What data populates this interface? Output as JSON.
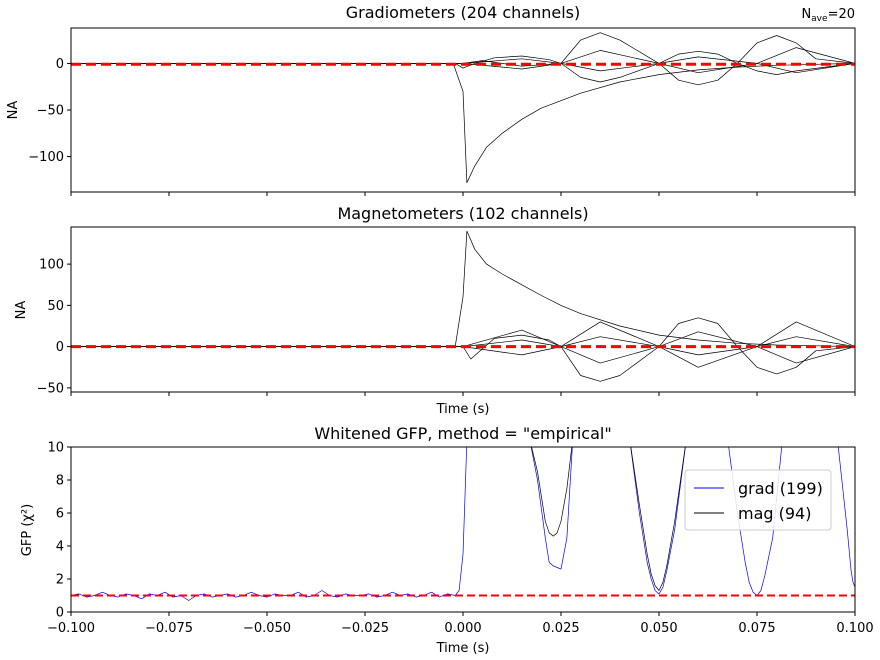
{
  "chart_data": [
    {
      "type": "line",
      "title": "Gradiometers (204 channels)",
      "annotation": {
        "prefix": "N",
        "subscript": "ave",
        "suffix": "=20"
      },
      "ylabel": "NA",
      "xlabel": "",
      "xlim": [
        -0.1,
        0.1
      ],
      "ylim": [
        -138,
        38
      ],
      "yticks": [
        {
          "v": 0,
          "label": "0"
        },
        {
          "v": -50,
          "label": "−50"
        },
        {
          "v": -100,
          "label": "−100"
        }
      ],
      "series": [
        {
          "color": "#000000",
          "style": "solid",
          "width": 0.7,
          "x": [
            -0.1,
            -0.0025,
            0.0,
            0.001,
            0.003,
            0.006,
            0.01,
            0.015,
            0.02,
            0.025,
            0.03,
            0.04,
            0.05,
            0.06,
            0.07,
            0.08,
            0.09,
            0.1
          ],
          "y": [
            0,
            0,
            -30,
            -128,
            -110,
            -90,
            -75,
            -60,
            -48,
            -40,
            -32,
            -20,
            -12,
            -7,
            -4,
            -2,
            -1,
            0
          ]
        },
        {
          "color": "#000000",
          "style": "solid",
          "width": 0.7,
          "x": [
            -0.1,
            -0.002,
            0.0,
            0.003,
            0.008,
            0.015,
            0.022,
            0.025,
            0.03,
            0.035,
            0.04,
            0.05,
            0.055,
            0.06,
            0.065,
            0.07,
            0.075,
            0.08,
            0.085,
            0.09,
            0.1
          ],
          "y": [
            0,
            0,
            -5,
            0,
            6,
            8,
            4,
            0,
            25,
            33,
            25,
            0,
            10,
            13,
            10,
            0,
            22,
            30,
            22,
            5,
            0
          ]
        },
        {
          "color": "#000000",
          "style": "solid",
          "width": 0.7,
          "x": [
            -0.1,
            0.0,
            0.005,
            0.015,
            0.025,
            0.03,
            0.035,
            0.04,
            0.05,
            0.055,
            0.06,
            0.065,
            0.07,
            0.075,
            0.08,
            0.085,
            0.1
          ],
          "y": [
            0,
            0,
            3,
            -3,
            0,
            -15,
            -20,
            -15,
            0,
            -18,
            -23,
            -18,
            0,
            -8,
            -12,
            -8,
            0
          ]
        },
        {
          "color": "#000000",
          "style": "solid",
          "width": 0.7,
          "x": [
            -0.1,
            0.0,
            0.015,
            0.025,
            0.035,
            0.05,
            0.06,
            0.075,
            0.085,
            0.1
          ],
          "y": [
            0,
            0,
            5,
            0,
            14,
            0,
            -10,
            0,
            17,
            0
          ]
        },
        {
          "color": "#000000",
          "style": "solid",
          "width": 0.7,
          "x": [
            -0.1,
            0.0,
            0.015,
            0.025,
            0.035,
            0.05,
            0.06,
            0.075,
            0.085,
            0.1
          ],
          "y": [
            0,
            0,
            -6,
            0,
            -8,
            0,
            7,
            0,
            -10,
            0
          ]
        },
        {
          "color": "#ff0000",
          "style": "dashed",
          "width": 3,
          "x": [
            -0.1,
            0.1
          ],
          "y": [
            -1,
            -1
          ]
        }
      ]
    },
    {
      "type": "line",
      "title": "Magnetometers (102 channels)",
      "ylabel": "NA",
      "xlabel": "Time (s)",
      "xlim": [
        -0.1,
        0.1
      ],
      "ylim": [
        -55,
        145
      ],
      "yticks": [
        {
          "v": 100,
          "label": "100"
        },
        {
          "v": 50,
          "label": "50"
        },
        {
          "v": 0,
          "label": "0"
        },
        {
          "v": -50,
          "label": "−50"
        }
      ],
      "series": [
        {
          "color": "#000000",
          "style": "solid",
          "width": 0.7,
          "x": [
            -0.1,
            -0.002,
            0.0,
            0.001,
            0.003,
            0.006,
            0.01,
            0.015,
            0.02,
            0.025,
            0.03,
            0.04,
            0.05,
            0.06,
            0.07,
            0.08,
            0.09,
            0.1
          ],
          "y": [
            0,
            0,
            60,
            140,
            118,
            100,
            88,
            75,
            62,
            50,
            40,
            25,
            14,
            8,
            4,
            2,
            1,
            0
          ]
        },
        {
          "color": "#000000",
          "style": "solid",
          "width": 0.7,
          "x": [
            -0.1,
            0.0,
            0.002,
            0.008,
            0.015,
            0.022,
            0.025,
            0.03,
            0.035,
            0.04,
            0.05,
            0.055,
            0.06,
            0.065,
            0.07,
            0.075,
            0.08,
            0.085,
            0.09,
            0.1
          ],
          "y": [
            0,
            0,
            -15,
            10,
            14,
            8,
            0,
            -35,
            -42,
            -35,
            0,
            28,
            35,
            28,
            0,
            -25,
            -33,
            -25,
            -5,
            0
          ]
        },
        {
          "color": "#000000",
          "style": "solid",
          "width": 0.7,
          "x": [
            -0.1,
            0.0,
            0.015,
            0.025,
            0.035,
            0.05,
            0.06,
            0.075,
            0.085,
            0.1
          ],
          "y": [
            0,
            0,
            20,
            0,
            30,
            0,
            -25,
            0,
            30,
            0
          ]
        },
        {
          "color": "#000000",
          "style": "solid",
          "width": 0.7,
          "x": [
            -0.1,
            0.0,
            0.015,
            0.025,
            0.035,
            0.05,
            0.06,
            0.075,
            0.085,
            0.1
          ],
          "y": [
            0,
            0,
            -10,
            0,
            -20,
            0,
            18,
            0,
            -20,
            0
          ]
        },
        {
          "color": "#000000",
          "style": "solid",
          "width": 0.7,
          "x": [
            -0.1,
            0.0,
            0.015,
            0.025,
            0.035,
            0.05,
            0.06,
            0.075,
            0.085,
            0.1
          ],
          "y": [
            0,
            0,
            8,
            0,
            12,
            0,
            -10,
            0,
            12,
            0
          ]
        },
        {
          "color": "#ff0000",
          "style": "dashed",
          "width": 3,
          "x": [
            -0.1,
            0.1
          ],
          "y": [
            0,
            0
          ]
        }
      ]
    },
    {
      "type": "line",
      "title": "Whitened GFP, method = \"empirical\"",
      "ylabel": "GFP (χ²)",
      "xlabel": "Time (s)",
      "xlim": [
        -0.1,
        0.1
      ],
      "ylim": [
        0,
        10
      ],
      "xticks": [
        {
          "v": -0.1,
          "label": "−0.100"
        },
        {
          "v": -0.075,
          "label": "−0.075"
        },
        {
          "v": -0.05,
          "label": "−0.050"
        },
        {
          "v": -0.025,
          "label": "−0.025"
        },
        {
          "v": 0.0,
          "label": "0.000"
        },
        {
          "v": 0.025,
          "label": "0.025"
        },
        {
          "v": 0.05,
          "label": "0.050"
        },
        {
          "v": 0.075,
          "label": "0.075"
        },
        {
          "v": 0.1,
          "label": "0.100"
        }
      ],
      "yticks": [
        {
          "v": 0,
          "label": "0"
        },
        {
          "v": 2,
          "label": "2"
        },
        {
          "v": 4,
          "label": "4"
        },
        {
          "v": 6,
          "label": "6"
        },
        {
          "v": 8,
          "label": "8"
        },
        {
          "v": 10,
          "label": "10"
        }
      ],
      "legend": {
        "position": "right",
        "entries": [
          {
            "label": "grad (199)",
            "color": "#0000ff"
          },
          {
            "label": "mag (94)",
            "color": "#000000"
          }
        ]
      },
      "series": [
        {
          "name": "grad (199)",
          "color": "#0000ff",
          "style": "solid",
          "width": 0.7,
          "x": [
            -0.1,
            -0.098,
            -0.096,
            -0.094,
            -0.092,
            -0.09,
            -0.088,
            -0.086,
            -0.084,
            -0.082,
            -0.08,
            -0.078,
            -0.076,
            -0.074,
            -0.072,
            -0.07,
            -0.068,
            -0.066,
            -0.064,
            -0.062,
            -0.06,
            -0.058,
            -0.056,
            -0.054,
            -0.052,
            -0.05,
            -0.048,
            -0.046,
            -0.044,
            -0.042,
            -0.04,
            -0.038,
            -0.036,
            -0.034,
            -0.032,
            -0.03,
            -0.028,
            -0.026,
            -0.024,
            -0.022,
            -0.02,
            -0.018,
            -0.016,
            -0.014,
            -0.012,
            -0.01,
            -0.008,
            -0.006,
            -0.004,
            -0.002,
            -0.001,
            0.0,
            0.0005,
            0.001,
            0.017,
            0.019,
            0.021,
            0.022,
            0.023,
            0.024,
            0.025,
            0.0265,
            0.028,
            0.0425,
            0.045,
            0.047,
            0.048,
            0.049,
            0.05,
            0.051,
            0.052,
            0.054,
            0.057,
            0.0675,
            0.07,
            0.072,
            0.073,
            0.074,
            0.075,
            0.076,
            0.077,
            0.079,
            0.0815,
            0.0955,
            0.098,
            0.099,
            0.0995,
            0.1,
            0.1
          ],
          "y": [
            1.0,
            1.1,
            0.9,
            1.0,
            1.2,
            1.0,
            0.9,
            1.1,
            1.0,
            0.8,
            1.1,
            1.0,
            1.2,
            0.9,
            1.0,
            0.7,
            1.0,
            1.1,
            0.9,
            1.0,
            1.1,
            0.9,
            1.0,
            1.2,
            1.0,
            0.9,
            1.1,
            1.0,
            1.0,
            1.2,
            0.9,
            1.0,
            1.3,
            1.0,
            0.9,
            1.1,
            1.0,
            1.0,
            1.1,
            0.9,
            1.0,
            1.2,
            1.0,
            1.1,
            0.9,
            1.0,
            1.2,
            0.9,
            1.1,
            1.0,
            1.3,
            3.5,
            7.0,
            10.5,
            10.5,
            8.0,
            4.5,
            3.0,
            2.8,
            2.7,
            2.6,
            4.5,
            10.5,
            10.5,
            6.0,
            3.0,
            2.0,
            1.3,
            1.1,
            1.5,
            2.5,
            5.0,
            10.5,
            10.5,
            6.0,
            3.0,
            1.8,
            1.2,
            1.0,
            1.3,
            2.2,
            4.5,
            10.5,
            10.5,
            5.0,
            2.5,
            1.8,
            1.5,
            6.5
          ]
        },
        {
          "name": "mag (94)",
          "color": "#000000",
          "style": "solid",
          "width": 0.7,
          "x": [
            0.017,
            0.019,
            0.021,
            0.022,
            0.023,
            0.024,
            0.025,
            0.0265,
            0.028,
            0.0425,
            0.045,
            0.047,
            0.048,
            0.049,
            0.05,
            0.051,
            0.052,
            0.054,
            0.057
          ],
          "y": [
            10.5,
            8.5,
            5.5,
            4.8,
            4.6,
            4.8,
            5.5,
            7.5,
            10.5,
            10.5,
            6.5,
            3.5,
            2.3,
            1.6,
            1.3,
            1.8,
            2.8,
            5.5,
            10.5
          ]
        },
        {
          "color": "#ff0000",
          "style": "dashed",
          "width": 2,
          "x": [
            -0.1,
            0.1
          ],
          "y": [
            1,
            1
          ]
        }
      ]
    }
  ]
}
